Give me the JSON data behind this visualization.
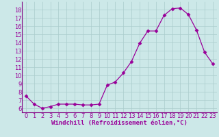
{
  "x": [
    0,
    1,
    2,
    3,
    4,
    5,
    6,
    7,
    8,
    9,
    10,
    11,
    12,
    13,
    14,
    15,
    16,
    17,
    18,
    19,
    20,
    21,
    22,
    23
  ],
  "y": [
    7.5,
    6.5,
    6.0,
    6.2,
    6.5,
    6.5,
    6.5,
    6.4,
    6.4,
    6.5,
    8.8,
    9.2,
    10.3,
    11.7,
    13.9,
    15.4,
    15.4,
    17.3,
    18.1,
    18.2,
    17.4,
    15.5,
    12.8,
    11.4
  ],
  "line_color": "#990099",
  "marker": "D",
  "marker_size": 2.5,
  "bg_color": "#cce8e8",
  "grid_color": "#aacccc",
  "xlabel": "Windchill (Refroidissement éolien,°C)",
  "xlabel_color": "#990099",
  "xlabel_fontsize": 6.5,
  "tick_color": "#990099",
  "tick_fontsize": 6,
  "ylim": [
    5.5,
    19.0
  ],
  "xlim": [
    -0.5,
    23.5
  ],
  "yticks": [
    6,
    7,
    8,
    9,
    10,
    11,
    12,
    13,
    14,
    15,
    16,
    17,
    18
  ],
  "xticks": [
    0,
    1,
    2,
    3,
    4,
    5,
    6,
    7,
    8,
    9,
    10,
    11,
    12,
    13,
    14,
    15,
    16,
    17,
    18,
    19,
    20,
    21,
    22,
    23
  ],
  "spine_color": "#800080",
  "linewidth": 0.9
}
